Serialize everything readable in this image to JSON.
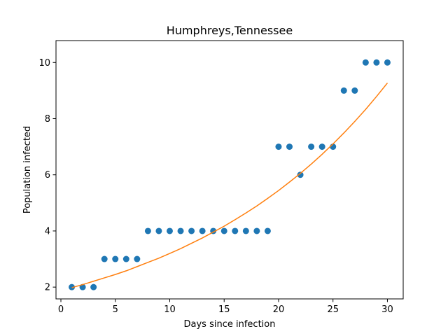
{
  "chart_data": {
    "type": "scatter",
    "title": "Humphreys,Tennessee",
    "xlabel": "Days since infection",
    "ylabel": "Population infected",
    "xlim": [
      -0.45,
      31.45
    ],
    "ylim": [
      1.58,
      10.78
    ],
    "xticks": [
      0,
      5,
      10,
      15,
      20,
      25,
      30
    ],
    "yticks": [
      2,
      4,
      6,
      8,
      10
    ],
    "grid": false,
    "series": [
      {
        "type": "scatter",
        "color": "#1f77b4",
        "x": [
          1,
          2,
          3,
          4,
          5,
          6,
          7,
          8,
          9,
          10,
          11,
          12,
          13,
          14,
          15,
          16,
          17,
          18,
          19,
          20,
          21,
          22,
          23,
          24,
          25,
          26,
          27,
          28,
          29,
          30
        ],
        "y": [
          2,
          2,
          2,
          3,
          3,
          3,
          3,
          4,
          4,
          4,
          4,
          4,
          4,
          4,
          4,
          4,
          4,
          4,
          4,
          7,
          7,
          6,
          7,
          7,
          7,
          9,
          9,
          10,
          10,
          10
        ]
      },
      {
        "type": "line",
        "color": "#ff7f0e",
        "x": [
          1,
          2,
          3,
          4,
          5,
          6,
          7,
          8,
          9,
          10,
          11,
          12,
          13,
          14,
          15,
          16,
          17,
          18,
          19,
          20,
          21,
          22,
          23,
          24,
          25,
          26,
          27,
          28,
          29,
          30
        ],
        "y": [
          1.98,
          2.09,
          2.21,
          2.33,
          2.45,
          2.58,
          2.73,
          2.88,
          3.03,
          3.2,
          3.37,
          3.56,
          3.75,
          3.96,
          4.17,
          4.4,
          4.64,
          4.89,
          5.16,
          5.44,
          5.74,
          6.05,
          6.38,
          6.73,
          7.1,
          7.49,
          7.9,
          8.33,
          8.79,
          9.27
        ]
      }
    ]
  }
}
